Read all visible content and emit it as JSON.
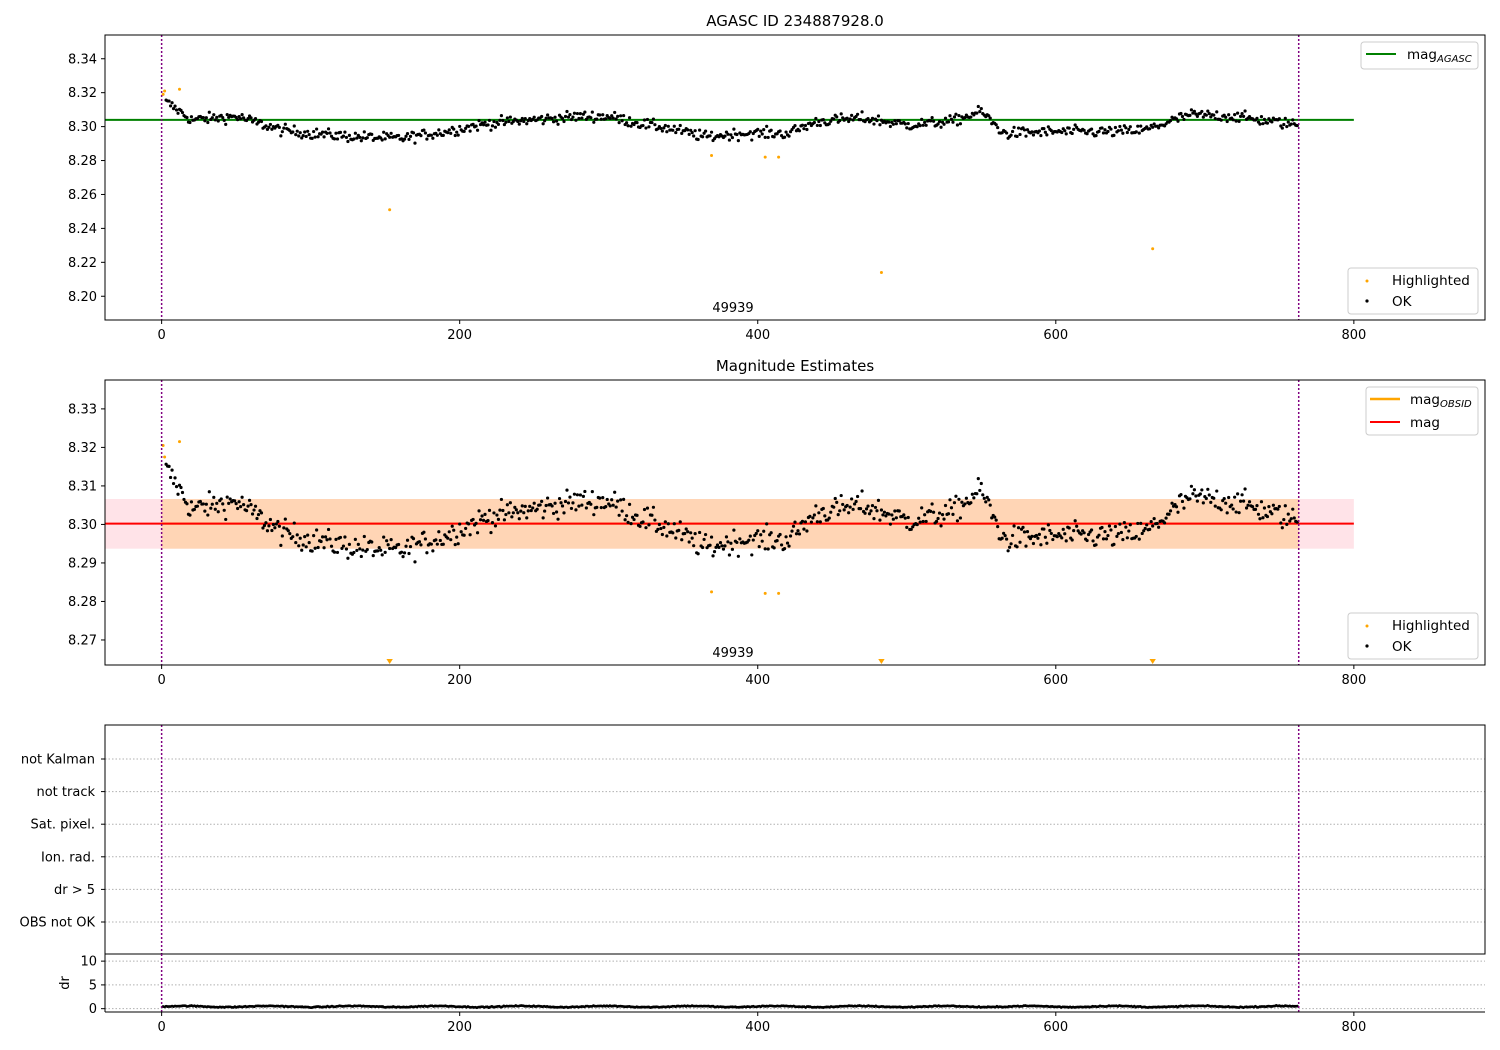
{
  "chart_data": [
    {
      "type": "scatter",
      "title": "AGASC ID 234887928.0",
      "xlim": [
        -38,
        888
      ],
      "ylim": [
        8.186,
        8.354
      ],
      "xticks": [
        0,
        200,
        400,
        600,
        800
      ],
      "yticks": [
        8.2,
        8.22,
        8.24,
        8.26,
        8.28,
        8.3,
        8.32,
        8.34
      ],
      "ytick_format": 2,
      "obsid_label": "49939",
      "obs_boundaries": [
        0,
        763
      ],
      "legend_position": "top-right",
      "lines": [
        {
          "name": "mag_AGASC",
          "legend_main": "mag",
          "legend_sub": "AGASC",
          "y": 8.304,
          "x": [
            -38,
            800
          ],
          "color": "#008000"
        }
      ],
      "series": [
        {
          "name": "Highlighted",
          "color": "#ffa500",
          "points": [
            [
              1,
              8.319
            ],
            [
              2,
              8.321
            ],
            [
              12,
              8.322
            ],
            [
              153,
              8.251
            ],
            [
              369,
              8.283
            ],
            [
              405,
              8.282
            ],
            [
              414,
              8.282
            ],
            [
              483,
              8.214
            ],
            [
              665,
              8.228
            ]
          ]
        },
        {
          "name": "OK",
          "color": "#000000",
          "trend": [
            [
              4,
              8.314
            ],
            [
              20,
              8.304
            ],
            [
              50,
              8.306
            ],
            [
              80,
              8.298
            ],
            [
              100,
              8.296
            ],
            [
              130,
              8.294
            ],
            [
              160,
              8.293
            ],
            [
              190,
              8.297
            ],
            [
              220,
              8.302
            ],
            [
              250,
              8.304
            ],
            [
              280,
              8.306
            ],
            [
              300,
              8.306
            ],
            [
              320,
              8.302
            ],
            [
              340,
              8.299
            ],
            [
              365,
              8.294
            ],
            [
              390,
              8.296
            ],
            [
              420,
              8.296
            ],
            [
              440,
              8.303
            ],
            [
              470,
              8.305
            ],
            [
              500,
              8.301
            ],
            [
              530,
              8.303
            ],
            [
              550,
              8.309
            ],
            [
              565,
              8.296
            ],
            [
              600,
              8.297
            ],
            [
              640,
              8.297
            ],
            [
              660,
              8.298
            ],
            [
              690,
              8.307
            ],
            [
              720,
              8.306
            ],
            [
              762,
              8.301
            ]
          ],
          "scatter": 0.0042,
          "count": 760
        }
      ]
    },
    {
      "type": "scatter",
      "title": "Magnitude Estimates",
      "xlim": [
        -38,
        888
      ],
      "ylim": [
        8.2635,
        8.3375
      ],
      "xticks": [
        0,
        200,
        400,
        600,
        800
      ],
      "yticks": [
        8.27,
        8.28,
        8.29,
        8.3,
        8.31,
        8.32,
        8.33
      ],
      "ytick_format": 2,
      "obsid_label": "49939",
      "obs_boundaries": [
        0,
        763
      ],
      "legend_position": "top-right",
      "band": {
        "y0": 8.2937,
        "y1": 8.3066,
        "x": [
          -38,
          800
        ],
        "color": "#ffc0cb"
      },
      "obsid_band": {
        "y0": 8.2937,
        "y1": 8.3066,
        "x": [
          0,
          763
        ],
        "color": "#ffa500"
      },
      "lines": [
        {
          "name": "mag_OBSID",
          "legend_main": "mag",
          "legend_sub": "OBSID",
          "y": 8.3002,
          "x": [
            0,
            763
          ],
          "color": "#ffa500"
        },
        {
          "name": "mag",
          "legend_main": "mag",
          "legend_sub": "",
          "y": 8.3002,
          "x": [
            -38,
            800
          ],
          "color": "#ff0000"
        }
      ],
      "series": [
        {
          "name": "Highlighted",
          "color": "#ffa500",
          "points": [
            [
              1,
              8.3205
            ],
            [
              2,
              8.3175
            ],
            [
              12,
              8.3215
            ],
            [
              369,
              8.2825
            ],
            [
              405,
              8.2821
            ],
            [
              414,
              8.2821
            ]
          ],
          "offscale": [
            153,
            483,
            665
          ]
        },
        {
          "name": "OK",
          "color": "#000000",
          "same_as_panel": 0
        }
      ]
    },
    {
      "type": "scatter",
      "title": "",
      "flags_panel": true,
      "xlim": [
        -38,
        888
      ],
      "category_labels": [
        "not Kalman",
        "not track",
        "Sat. pixel.",
        "Ion. rad.",
        "dr > 5",
        "OBS not OK"
      ],
      "obs_boundaries": [
        0,
        763
      ],
      "dr_panel": {
        "ylabel": "dr",
        "ylim": [
          -0.7,
          11.5
        ],
        "yticks": [
          0,
          5,
          10
        ],
        "xticks": [
          0,
          200,
          400,
          600,
          800
        ],
        "series": {
          "name": "dr",
          "color": "#000000",
          "base": 0.45,
          "scatter": 0.18,
          "count": 760
        }
      }
    }
  ]
}
